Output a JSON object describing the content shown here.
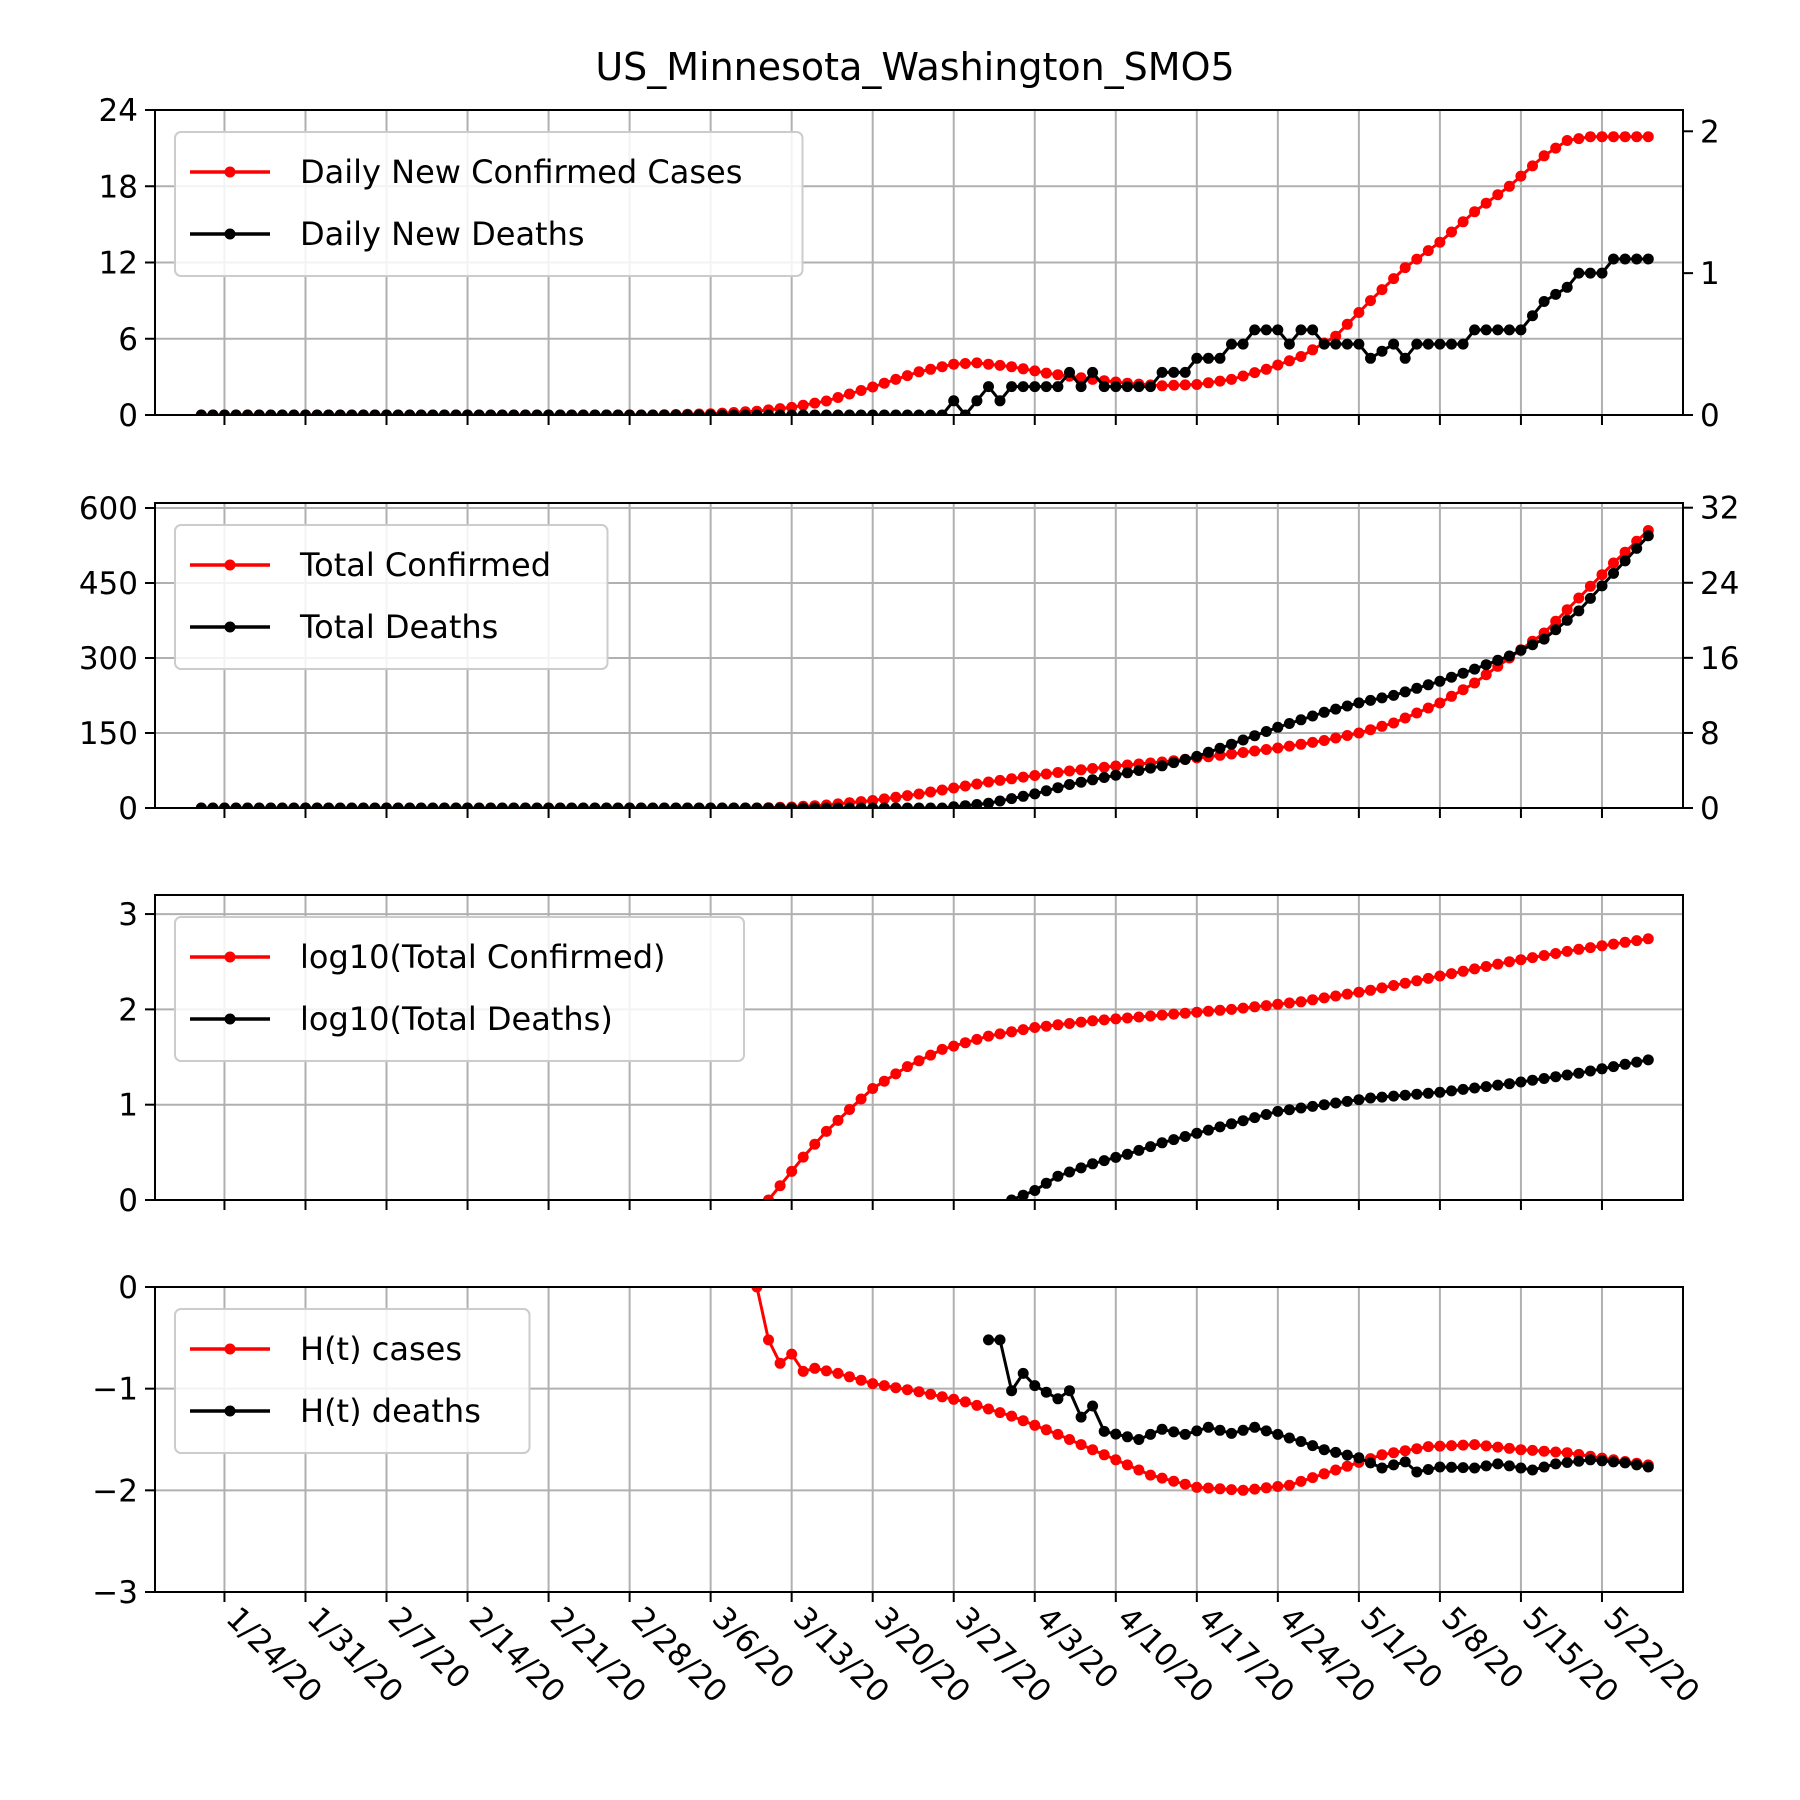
{
  "figure_title": "US_Minnesota_Washington_SMO5",
  "chart_data": {
    "type": "line",
    "title": "US_Minnesota_Washington_SMO5",
    "x_start": "1/22/20",
    "x_end": "5/26/20",
    "x_tick_labels": [
      "1/24/20",
      "1/31/20",
      "2/7/20",
      "2/14/20",
      "2/21/20",
      "2/28/20",
      "3/6/20",
      "3/13/20",
      "3/20/20",
      "3/27/20",
      "4/3/20",
      "4/10/20",
      "4/17/20",
      "4/24/20",
      "5/1/20",
      "5/8/20",
      "5/15/20",
      "5/22/20"
    ],
    "grid": true,
    "legend_position": "upper-left",
    "colors": {
      "cases": "#ff0000",
      "deaths": "#000000"
    },
    "panels": [
      {
        "id": "daily",
        "ylim_left": [
          0,
          24
        ],
        "yticks_left": [
          0,
          6,
          12,
          18,
          24
        ],
        "ylim_right": [
          0,
          2.15
        ],
        "yticks_right": [
          0,
          1,
          2
        ],
        "series": [
          {
            "name": "Daily New Confirmed Cases",
            "color": "#ff0000",
            "axis": "left",
            "points": [
              [
                "1/22/20",
                0
              ],
              [
                "3/1/20",
                0
              ],
              [
                "3/6/20",
                0.1
              ],
              [
                "3/10/20",
                0.3
              ],
              [
                "3/13/20",
                0.6
              ],
              [
                "3/16/20",
                1.1
              ],
              [
                "3/20/20",
                2.2
              ],
              [
                "3/24/20",
                3.4
              ],
              [
                "3/27/20",
                4.0
              ],
              [
                "3/29/20",
                4.1
              ],
              [
                "4/1/20",
                3.8
              ],
              [
                "4/4/20",
                3.3
              ],
              [
                "4/8/20",
                2.8
              ],
              [
                "4/11/20",
                2.5
              ],
              [
                "4/14/20",
                2.3
              ],
              [
                "4/17/20",
                2.4
              ],
              [
                "4/20/20",
                2.8
              ],
              [
                "4/23/20",
                3.6
              ],
              [
                "4/26/20",
                4.6
              ],
              [
                "4/29/20",
                6.2
              ],
              [
                "5/2/20",
                9.0
              ],
              [
                "5/5/20",
                11.6
              ],
              [
                "5/8/20",
                13.6
              ],
              [
                "5/11/20",
                16.0
              ],
              [
                "5/14/20",
                18.0
              ],
              [
                "5/17/20",
                20.4
              ],
              [
                "5/19/20",
                21.6
              ],
              [
                "5/21/20",
                21.9
              ],
              [
                "5/26/20",
                21.9
              ]
            ]
          },
          {
            "name": "Daily New Deaths",
            "color": "#000000",
            "axis": "right",
            "points": [
              [
                "1/22/20",
                0
              ],
              [
                "3/26/20",
                0
              ],
              [
                "3/27/20",
                0.1
              ],
              [
                "3/28/20",
                0
              ],
              [
                "3/29/20",
                0.1
              ],
              [
                "3/30/20",
                0.2
              ],
              [
                "3/31/20",
                0.1
              ],
              [
                "4/1/20",
                0.2
              ],
              [
                "4/5/20",
                0.2
              ],
              [
                "4/6/20",
                0.3
              ],
              [
                "4/7/20",
                0.2
              ],
              [
                "4/8/20",
                0.3
              ],
              [
                "4/9/20",
                0.2
              ],
              [
                "4/13/20",
                0.2
              ],
              [
                "4/14/20",
                0.3
              ],
              [
                "4/16/20",
                0.3
              ],
              [
                "4/17/20",
                0.4
              ],
              [
                "4/19/20",
                0.4
              ],
              [
                "4/20/20",
                0.5
              ],
              [
                "4/21/20",
                0.5
              ],
              [
                "4/22/20",
                0.6
              ],
              [
                "4/24/20",
                0.6
              ],
              [
                "4/25/20",
                0.5
              ],
              [
                "4/26/20",
                0.6
              ],
              [
                "4/27/20",
                0.6
              ],
              [
                "4/28/20",
                0.5
              ],
              [
                "5/1/20",
                0.5
              ],
              [
                "5/2/20",
                0.4
              ],
              [
                "5/4/20",
                0.5
              ],
              [
                "5/5/20",
                0.4
              ],
              [
                "5/6/20",
                0.5
              ],
              [
                "5/10/20",
                0.5
              ],
              [
                "5/11/20",
                0.6
              ],
              [
                "5/15/20",
                0.6
              ],
              [
                "5/16/20",
                0.7
              ],
              [
                "5/17/20",
                0.8
              ],
              [
                "5/19/20",
                0.9
              ],
              [
                "5/20/20",
                1.0
              ],
              [
                "5/22/20",
                1.0
              ],
              [
                "5/23/20",
                1.1
              ],
              [
                "5/26/20",
                1.1
              ]
            ]
          }
        ]
      },
      {
        "id": "total",
        "ylim_left": [
          0,
          610
        ],
        "yticks_left": [
          0,
          150,
          300,
          450,
          600
        ],
        "ylim_right": [
          0,
          32.5
        ],
        "yticks_right": [
          0,
          8,
          16,
          24,
          32
        ],
        "series": [
          {
            "name": "Total Confirmed",
            "color": "#ff0000",
            "axis": "left",
            "points": [
              [
                "1/22/20",
                0
              ],
              [
                "3/10/20",
                0
              ],
              [
                "3/13/20",
                2
              ],
              [
                "3/16/20",
                6
              ],
              [
                "3/20/20",
                15
              ],
              [
                "3/24/20",
                28
              ],
              [
                "3/27/20",
                40
              ],
              [
                "3/30/20",
                52
              ],
              [
                "4/3/20",
                65
              ],
              [
                "4/6/20",
                74
              ],
              [
                "4/10/20",
                84
              ],
              [
                "4/14/20",
                92
              ],
              [
                "4/17/20",
                100
              ],
              [
                "4/20/20",
                108
              ],
              [
                "4/24/20",
                120
              ],
              [
                "4/28/20",
                135
              ],
              [
                "5/1/20",
                150
              ],
              [
                "5/4/20",
                170
              ],
              [
                "5/8/20",
                210
              ],
              [
                "5/11/20",
                250
              ],
              [
                "5/14/20",
                300
              ],
              [
                "5/17/20",
                350
              ],
              [
                "5/20/20",
                420
              ],
              [
                "5/23/20",
                490
              ],
              [
                "5/26/20",
                555
              ]
            ]
          },
          {
            "name": "Total Deaths",
            "color": "#000000",
            "axis": "right",
            "points": [
              [
                "1/22/20",
                0
              ],
              [
                "3/26/20",
                0
              ],
              [
                "3/30/20",
                0.5
              ],
              [
                "4/3/20",
                1.5
              ],
              [
                "4/6/20",
                2.5
              ],
              [
                "4/10/20",
                3.5
              ],
              [
                "4/14/20",
                4.5
              ],
              [
                "4/17/20",
                5.5
              ],
              [
                "4/20/20",
                6.8
              ],
              [
                "4/24/20",
                8.6
              ],
              [
                "4/28/20",
                10.2
              ],
              [
                "5/1/20",
                11.2
              ],
              [
                "5/4/20",
                12.0
              ],
              [
                "5/8/20",
                13.5
              ],
              [
                "5/11/20",
                14.8
              ],
              [
                "5/14/20",
                16.2
              ],
              [
                "5/17/20",
                18.0
              ],
              [
                "5/20/20",
                21.0
              ],
              [
                "5/23/20",
                25.0
              ],
              [
                "5/26/20",
                29.0
              ]
            ]
          }
        ]
      },
      {
        "id": "log",
        "ylim_left": [
          0,
          3.2
        ],
        "yticks_left": [
          0,
          1,
          2,
          3
        ],
        "series": [
          {
            "name": "log10(Total Confirmed)",
            "color": "#ff0000",
            "axis": "left",
            "points": [
              [
                "3/11/20",
                0
              ],
              [
                "3/12/20",
                0.15
              ],
              [
                "3/14/20",
                0.45
              ],
              [
                "3/16/20",
                0.72
              ],
              [
                "3/18/20",
                0.95
              ],
              [
                "3/20/20",
                1.17
              ],
              [
                "3/23/20",
                1.4
              ],
              [
                "3/26/20",
                1.58
              ],
              [
                "3/30/20",
                1.72
              ],
              [
                "4/3/20",
                1.81
              ],
              [
                "4/8/20",
                1.88
              ],
              [
                "4/14/20",
                1.94
              ],
              [
                "4/20/20",
                2.0
              ],
              [
                "4/26/20",
                2.08
              ],
              [
                "5/2/20",
                2.2
              ],
              [
                "5/8/20",
                2.35
              ],
              [
                "5/14/20",
                2.5
              ],
              [
                "5/20/20",
                2.63
              ],
              [
                "5/26/20",
                2.74
              ]
            ]
          },
          {
            "name": "log10(Total Deaths)",
            "color": "#000000",
            "axis": "left",
            "points": [
              [
                "4/1/20",
                0
              ],
              [
                "4/3/20",
                0.1
              ],
              [
                "4/5/20",
                0.25
              ],
              [
                "4/8/20",
                0.38
              ],
              [
                "4/11/20",
                0.48
              ],
              [
                "4/14/20",
                0.6
              ],
              [
                "4/17/20",
                0.7
              ],
              [
                "4/20/20",
                0.8
              ],
              [
                "4/24/20",
                0.93
              ],
              [
                "4/28/20",
                1.0
              ],
              [
                "5/2/20",
                1.07
              ],
              [
                "5/8/20",
                1.13
              ],
              [
                "5/14/20",
                1.22
              ],
              [
                "5/20/20",
                1.33
              ],
              [
                "5/26/20",
                1.47
              ]
            ]
          }
        ]
      },
      {
        "id": "hurst",
        "ylim_left": [
          -3,
          0
        ],
        "yticks_left": [
          0,
          -1,
          -2,
          -3
        ],
        "series": [
          {
            "name": "H(t) cases",
            "color": "#ff0000",
            "axis": "left",
            "points": [
              [
                "3/10/20",
                0
              ],
              [
                "3/11/20",
                -0.52
              ],
              [
                "3/12/20",
                -0.75
              ],
              [
                "3/13/20",
                -0.66
              ],
              [
                "3/14/20",
                -0.83
              ],
              [
                "3/15/20",
                -0.8
              ],
              [
                "3/17/20",
                -0.85
              ],
              [
                "3/20/20",
                -0.95
              ],
              [
                "3/24/20",
                -1.03
              ],
              [
                "3/28/20",
                -1.13
              ],
              [
                "4/1/20",
                -1.27
              ],
              [
                "4/5/20",
                -1.45
              ],
              [
                "4/9/20",
                -1.65
              ],
              [
                "4/13/20",
                -1.85
              ],
              [
                "4/17/20",
                -1.97
              ],
              [
                "4/21/20",
                -2.0
              ],
              [
                "4/25/20",
                -1.95
              ],
              [
                "4/29/20",
                -1.8
              ],
              [
                "5/3/20",
                -1.65
              ],
              [
                "5/7/20",
                -1.57
              ],
              [
                "5/11/20",
                -1.55
              ],
              [
                "5/15/20",
                -1.6
              ],
              [
                "5/19/20",
                -1.63
              ],
              [
                "5/23/20",
                -1.7
              ],
              [
                "5/26/20",
                -1.75
              ]
            ]
          },
          {
            "name": "H(t) deaths",
            "color": "#000000",
            "axis": "left",
            "points": [
              [
                "3/30/20",
                -0.52
              ],
              [
                "3/31/20",
                -0.52
              ],
              [
                "4/1/20",
                -1.02
              ],
              [
                "4/2/20",
                -0.85
              ],
              [
                "4/3/20",
                -0.97
              ],
              [
                "4/5/20",
                -1.1
              ],
              [
                "4/6/20",
                -1.02
              ],
              [
                "4/7/20",
                -1.28
              ],
              [
                "4/8/20",
                -1.17
              ],
              [
                "4/9/20",
                -1.42
              ],
              [
                "4/12/20",
                -1.5
              ],
              [
                "4/14/20",
                -1.4
              ],
              [
                "4/16/20",
                -1.45
              ],
              [
                "4/18/20",
                -1.38
              ],
              [
                "4/20/20",
                -1.44
              ],
              [
                "4/22/20",
                -1.38
              ],
              [
                "4/24/20",
                -1.45
              ],
              [
                "4/26/20",
                -1.52
              ],
              [
                "4/28/20",
                -1.6
              ],
              [
                "5/1/20",
                -1.68
              ],
              [
                "5/3/20",
                -1.78
              ],
              [
                "5/5/20",
                -1.72
              ],
              [
                "5/6/20",
                -1.82
              ],
              [
                "5/8/20",
                -1.77
              ],
              [
                "5/11/20",
                -1.78
              ],
              [
                "5/13/20",
                -1.74
              ],
              [
                "5/16/20",
                -1.8
              ],
              [
                "5/18/20",
                -1.74
              ],
              [
                "5/21/20",
                -1.7
              ],
              [
                "5/24/20",
                -1.73
              ],
              [
                "5/26/20",
                -1.77
              ]
            ]
          }
        ]
      }
    ]
  }
}
